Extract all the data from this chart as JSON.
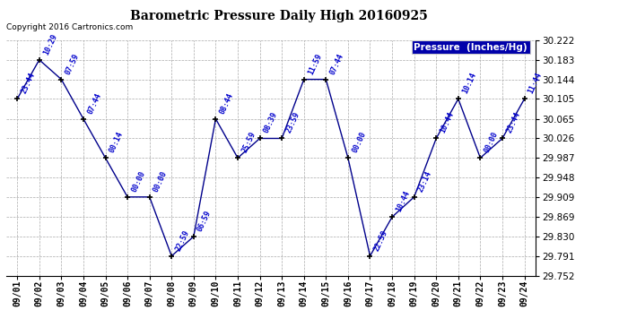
{
  "title": "Barometric Pressure Daily High 20160925",
  "copyright": "Copyright 2016 Cartronics.com",
  "legend_label": "Pressure  (Inches/Hg)",
  "background_color": "#ffffff",
  "line_color": "#00008B",
  "marker_color": "#000000",
  "label_color": "#0000CC",
  "ylim": [
    29.752,
    30.222
  ],
  "yticks": [
    29.752,
    29.791,
    29.83,
    29.869,
    29.909,
    29.948,
    29.987,
    30.026,
    30.065,
    30.105,
    30.144,
    30.183,
    30.222
  ],
  "dates": [
    "09/01",
    "09/02",
    "09/03",
    "09/04",
    "09/05",
    "09/06",
    "09/07",
    "09/08",
    "09/09",
    "09/10",
    "09/11",
    "09/12",
    "09/13",
    "09/14",
    "09/15",
    "09/16",
    "09/17",
    "09/18",
    "09/19",
    "09/20",
    "09/21",
    "09/22",
    "09/23",
    "09/24"
  ],
  "points": [
    {
      "date": "09/01",
      "time": "23:44",
      "value": 30.105
    },
    {
      "date": "09/02",
      "time": "10:29",
      "value": 30.183
    },
    {
      "date": "09/03",
      "time": "07:59",
      "value": 30.144
    },
    {
      "date": "09/04",
      "time": "07:44",
      "value": 30.065
    },
    {
      "date": "09/05",
      "time": "00:14",
      "value": 29.987
    },
    {
      "date": "09/06",
      "time": "00:00",
      "value": 29.909
    },
    {
      "date": "09/07",
      "time": "00:00",
      "value": 29.909
    },
    {
      "date": "09/08",
      "time": "22:59",
      "value": 29.791
    },
    {
      "date": "09/09",
      "time": "06:59",
      "value": 29.83
    },
    {
      "date": "09/10",
      "time": "08:44",
      "value": 30.065
    },
    {
      "date": "09/11",
      "time": "25:59",
      "value": 29.987
    },
    {
      "date": "09/12",
      "time": "08:39",
      "value": 30.026
    },
    {
      "date": "09/13",
      "time": "23:59",
      "value": 30.026
    },
    {
      "date": "09/14",
      "time": "11:59",
      "value": 30.144
    },
    {
      "date": "09/15",
      "time": "07:44",
      "value": 30.144
    },
    {
      "date": "09/16",
      "time": "00:00",
      "value": 29.987
    },
    {
      "date": "09/17",
      "time": "22:59",
      "value": 29.791
    },
    {
      "date": "09/18",
      "time": "10:44",
      "value": 29.869
    },
    {
      "date": "09/19",
      "time": "23:14",
      "value": 29.909
    },
    {
      "date": "09/20",
      "time": "10:44",
      "value": 30.026
    },
    {
      "date": "09/21",
      "time": "10:14",
      "value": 30.105
    },
    {
      "date": "09/22",
      "time": "00:00",
      "value": 29.987
    },
    {
      "date": "09/23",
      "time": "23:44",
      "value": 30.026
    },
    {
      "date": "09/24",
      "time": "11:44",
      "value": 30.105
    }
  ]
}
